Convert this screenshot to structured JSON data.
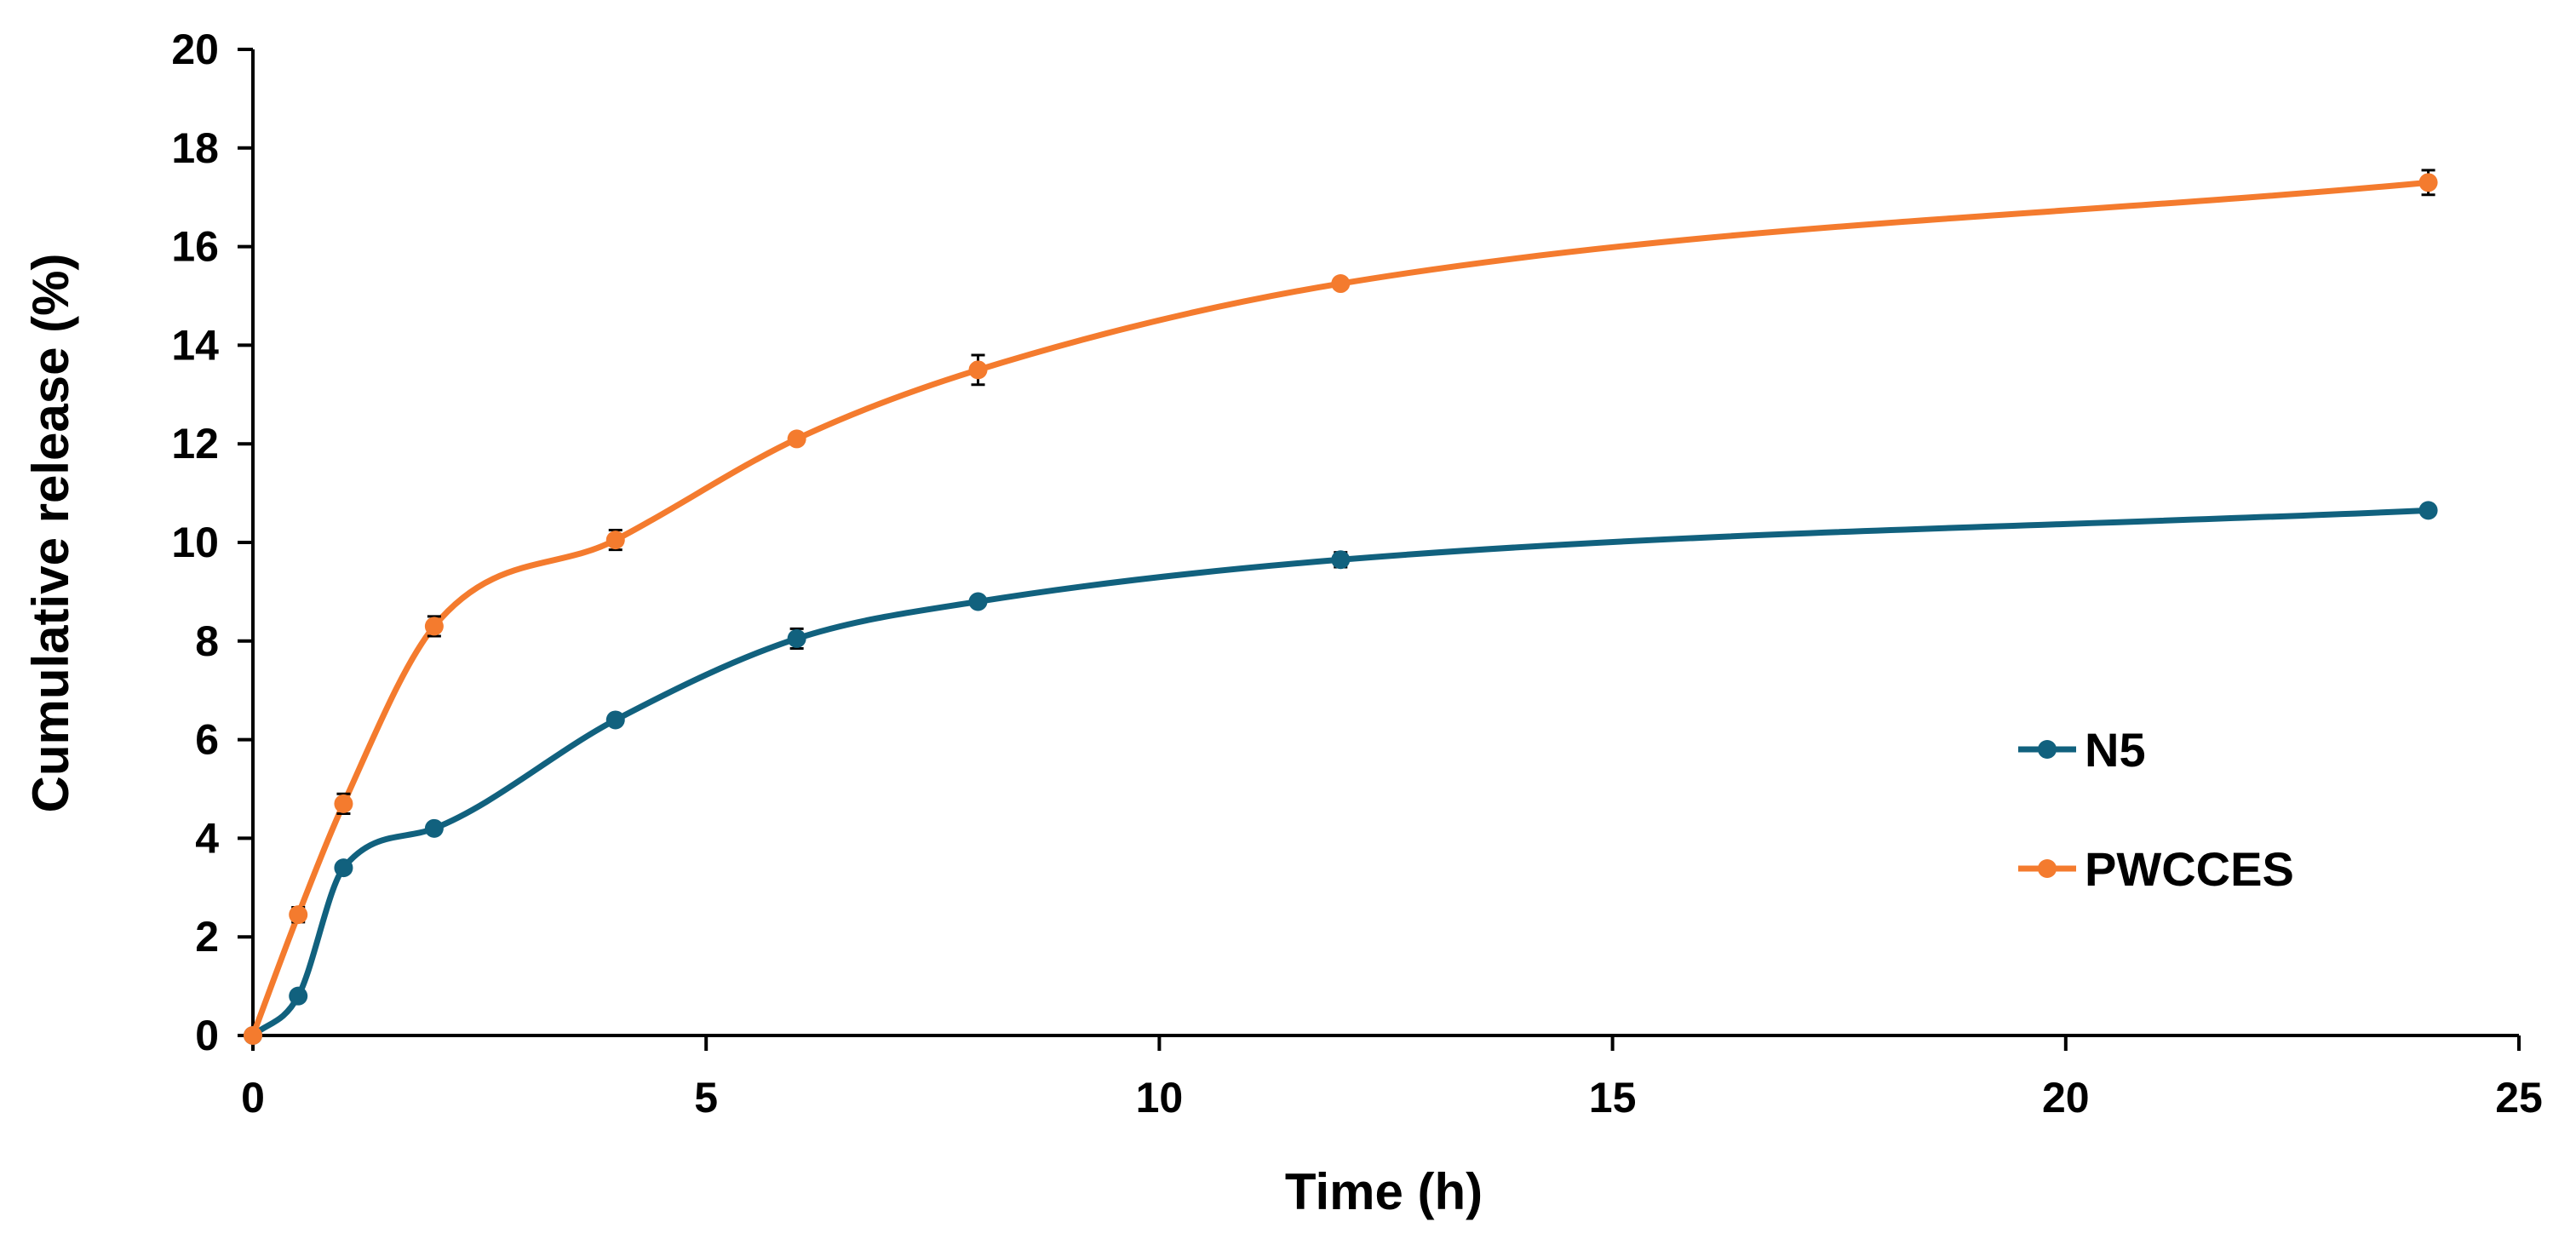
{
  "chart_data": {
    "type": "line",
    "title": "",
    "xlabel": "Time (h)",
    "ylabel": "Cumulative release (%)",
    "xlim": [
      0,
      25
    ],
    "ylim": [
      0,
      20
    ],
    "xticks": [
      0,
      5,
      10,
      15,
      20,
      25
    ],
    "yticks": [
      0,
      2,
      4,
      6,
      8,
      10,
      12,
      14,
      16,
      18,
      20
    ],
    "grid": false,
    "smooth": true,
    "legend_position": "right",
    "series": [
      {
        "name": "N5",
        "color": "#11617e",
        "x": [
          0,
          0.5,
          1,
          2,
          4,
          6,
          8,
          12,
          24
        ],
        "y": [
          0,
          0.8,
          3.4,
          4.2,
          6.4,
          8.05,
          8.8,
          9.65,
          10.65
        ],
        "err": [
          0,
          0.1,
          0.1,
          0.1,
          0.1,
          0.2,
          0.1,
          0.15,
          0.1
        ]
      },
      {
        "name": "PWCCES",
        "color": "#f47b2e",
        "x": [
          0,
          0.5,
          1,
          2,
          4,
          6,
          8,
          12,
          24
        ],
        "y": [
          0,
          2.45,
          4.7,
          8.3,
          10.05,
          12.1,
          13.5,
          15.25,
          17.3
        ],
        "err": [
          0,
          0.15,
          0.2,
          0.2,
          0.2,
          0.1,
          0.3,
          0.1,
          0.25
        ]
      }
    ]
  }
}
